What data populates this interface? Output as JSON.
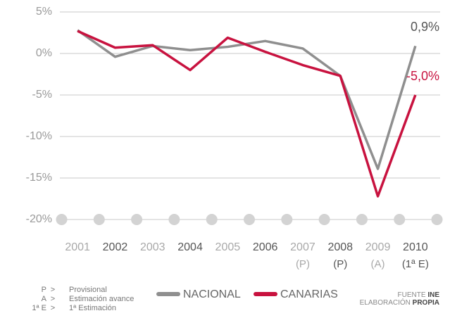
{
  "chart_data": {
    "type": "line",
    "categories": [
      "2001",
      "2002",
      "2003",
      "2004",
      "2005",
      "2006",
      "2007",
      "2008",
      "2009",
      "2010"
    ],
    "category_notes": [
      null,
      null,
      null,
      null,
      null,
      null,
      "(P)",
      "(P)",
      "(A)",
      "(1ª E)"
    ],
    "series": [
      {
        "name": "NACIONAL",
        "color": "#8f8f8f",
        "values": [
          2.8,
          -0.4,
          0.9,
          0.4,
          0.8,
          1.5,
          0.6,
          -2.7,
          -13.9,
          0.9
        ],
        "value_labels": [
          null,
          null,
          null,
          null,
          null,
          null,
          null,
          null,
          null,
          "0,9%"
        ]
      },
      {
        "name": "CANARIAS",
        "color": "#c8123f",
        "values": [
          2.7,
          0.7,
          1.0,
          -2.0,
          1.9,
          0.2,
          -1.4,
          -2.7,
          -17.2,
          -5.0
        ],
        "value_labels": [
          null,
          null,
          null,
          null,
          null,
          null,
          null,
          null,
          null,
          "-5,0%"
        ]
      }
    ],
    "ylim": [
      -20,
      5
    ],
    "yticks": [
      {
        "value": 5,
        "label": "5%"
      },
      {
        "value": 0,
        "label": "0%"
      },
      {
        "value": -5,
        "label": "-5%"
      },
      {
        "value": -10,
        "label": "-10%"
      },
      {
        "value": -15,
        "label": "-15%"
      },
      {
        "value": -20,
        "label": "-20%"
      }
    ],
    "grid": true,
    "notes": [
      {
        "key": "P",
        "sep": ">",
        "text": "Provisional"
      },
      {
        "key": "A",
        "sep": ">",
        "text": "Estimación avance"
      },
      {
        "key": "1ª E",
        "sep": ">",
        "text": "1ª Estimación"
      }
    ],
    "source": [
      {
        "label": "FUENTE",
        "value": "INE"
      },
      {
        "label": "ELABORACIÓN",
        "value": "PROPIA"
      }
    ]
  }
}
